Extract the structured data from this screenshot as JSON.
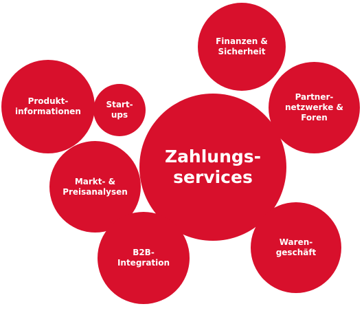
{
  "accent_color": "#d8102c",
  "center": {
    "label": "Zahlungs-\nservices"
  },
  "bubbles": {
    "finanzen": "Finanzen &\nSicherheit",
    "partner": "Partner-\nnetzwerke &\nForen",
    "produkt": "Produkt-\ninformationen",
    "startups": "Start-\nups",
    "markt": "Markt- &\nPreisanalysen",
    "b2b": "B2B-\nIntegration",
    "waren": "Waren-\ngeschäft"
  }
}
